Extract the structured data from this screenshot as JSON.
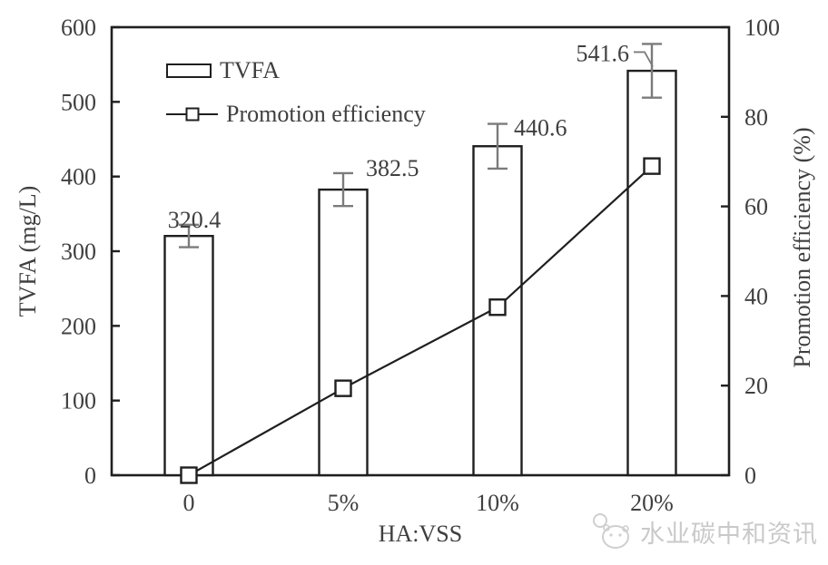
{
  "colors": {
    "ink": "#1f1f1f",
    "text": "#3f3f3f",
    "error_bar": "#7b7b7b",
    "watermark": "#c9c9c9",
    "background": "#ffffff"
  },
  "legend": {
    "items": [
      {
        "label": "TVFA",
        "symbol": "bar-outline"
      },
      {
        "label": "Promotion efficiency",
        "symbol": "line-with-square-marker"
      }
    ]
  },
  "watermark": {
    "text": "水业碳中和资讯",
    "logo": "panda-face-icon"
  },
  "chart_data": {
    "type": "bar",
    "subtype": "dual-axis bar + line combo",
    "categories": [
      "0",
      "5%",
      "10%",
      "20%"
    ],
    "series": [
      {
        "name": "TVFA",
        "type": "bar",
        "axis": "left",
        "values": [
          320.4,
          382.5,
          440.6,
          541.6
        ],
        "value_labels": [
          "320.4",
          "382.5",
          "440.6",
          "541.6"
        ],
        "errors": [
          15,
          22,
          30,
          36
        ],
        "bar_fill": "#ffffff",
        "bar_outline": "#1f1f1f"
      },
      {
        "name": "Promotion efficiency",
        "type": "line",
        "axis": "right",
        "values": [
          0,
          19.4,
          37.5,
          69.0
        ],
        "marker": "open-square"
      }
    ],
    "xlabel": "HA:VSS",
    "ylabel_left": "TVFA (mg/L)",
    "ylabel_right": "Promotion efficiency (%)",
    "ylim_left": [
      0,
      600
    ],
    "ylim_right": [
      0,
      100
    ],
    "left_ticks": [
      0,
      100,
      200,
      300,
      400,
      500,
      600
    ],
    "right_ticks": [
      0,
      20,
      40,
      60,
      80,
      100
    ],
    "grid": false,
    "frame": "full-box",
    "legend_position": "inside-top-left"
  }
}
